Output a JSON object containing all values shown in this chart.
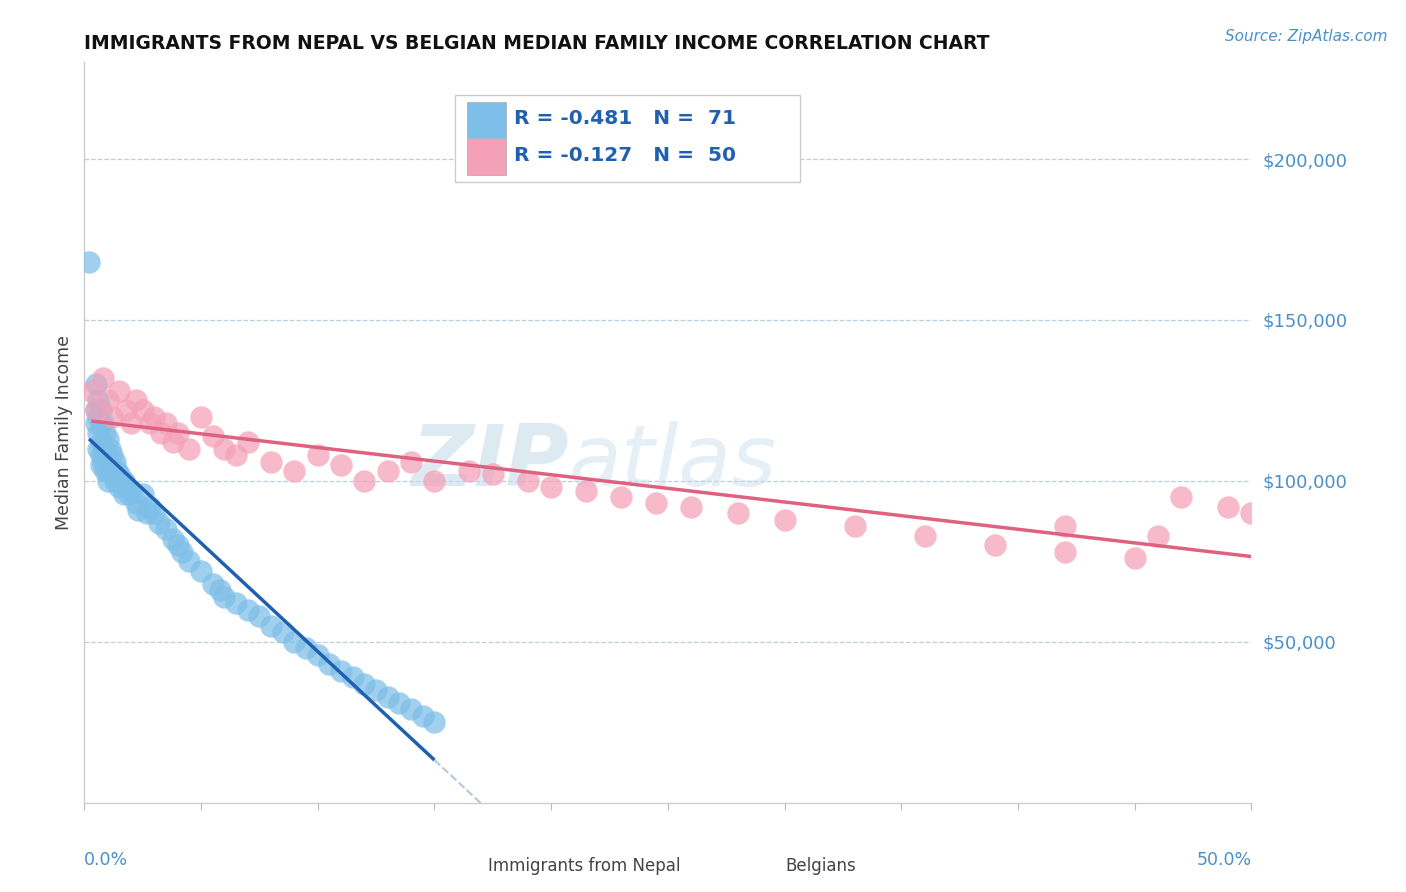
{
  "title": "IMMIGRANTS FROM NEPAL VS BELGIAN MEDIAN FAMILY INCOME CORRELATION CHART",
  "source": "Source: ZipAtlas.com",
  "ylabel": "Median Family Income",
  "yticks": [
    50000,
    100000,
    150000,
    200000
  ],
  "ytick_labels": [
    "$50,000",
    "$100,000",
    "$150,000",
    "$200,000"
  ],
  "xlim": [
    0.0,
    0.5
  ],
  "ylim": [
    0,
    230000
  ],
  "color_blue": "#7dbfe8",
  "color_pink": "#f4a0b8",
  "color_blue_line": "#2060b0",
  "color_pink_line": "#e06080",
  "color_dashed": "#b0c8e0",
  "watermark_left": "ZIP",
  "watermark_right": "atlas",
  "nepal_x": [
    0.002,
    0.005,
    0.005,
    0.005,
    0.006,
    0.006,
    0.006,
    0.006,
    0.007,
    0.007,
    0.007,
    0.007,
    0.007,
    0.008,
    0.008,
    0.008,
    0.009,
    0.009,
    0.009,
    0.01,
    0.01,
    0.01,
    0.01,
    0.011,
    0.011,
    0.012,
    0.012,
    0.013,
    0.013,
    0.014,
    0.015,
    0.015,
    0.016,
    0.017,
    0.017,
    0.018,
    0.019,
    0.02,
    0.022,
    0.023,
    0.025,
    0.027,
    0.028,
    0.03,
    0.032,
    0.035,
    0.038,
    0.04,
    0.042,
    0.045,
    0.05,
    0.055,
    0.058,
    0.06,
    0.065,
    0.07,
    0.075,
    0.08,
    0.085,
    0.09,
    0.095,
    0.1,
    0.105,
    0.11,
    0.115,
    0.12,
    0.125,
    0.13,
    0.135,
    0.14,
    0.145,
    0.15
  ],
  "nepal_y": [
    168000,
    130000,
    122000,
    118000,
    125000,
    120000,
    115000,
    110000,
    122000,
    118000,
    112000,
    108000,
    105000,
    118000,
    110000,
    106000,
    115000,
    108000,
    103000,
    113000,
    108000,
    103000,
    100000,
    110000,
    104000,
    108000,
    102000,
    106000,
    100000,
    103000,
    102000,
    98000,
    100000,
    100000,
    96000,
    98000,
    96000,
    97000,
    93000,
    91000,
    96000,
    90000,
    92000,
    90000,
    87000,
    85000,
    82000,
    80000,
    78000,
    75000,
    72000,
    68000,
    66000,
    64000,
    62000,
    60000,
    58000,
    55000,
    53000,
    50000,
    48000,
    46000,
    43000,
    41000,
    39000,
    37000,
    35000,
    33000,
    31000,
    29000,
    27000,
    25000
  ],
  "belgians_x": [
    0.003,
    0.005,
    0.008,
    0.01,
    0.012,
    0.015,
    0.018,
    0.02,
    0.022,
    0.025,
    0.028,
    0.03,
    0.033,
    0.035,
    0.038,
    0.04,
    0.045,
    0.05,
    0.055,
    0.06,
    0.065,
    0.07,
    0.08,
    0.09,
    0.1,
    0.11,
    0.12,
    0.13,
    0.14,
    0.15,
    0.165,
    0.175,
    0.19,
    0.2,
    0.215,
    0.23,
    0.245,
    0.26,
    0.28,
    0.3,
    0.33,
    0.36,
    0.39,
    0.42,
    0.45,
    0.47,
    0.49,
    0.5,
    0.42,
    0.46
  ],
  "belgians_y": [
    128000,
    122000,
    132000,
    125000,
    120000,
    128000,
    122000,
    118000,
    125000,
    122000,
    118000,
    120000,
    115000,
    118000,
    112000,
    115000,
    110000,
    120000,
    114000,
    110000,
    108000,
    112000,
    106000,
    103000,
    108000,
    105000,
    100000,
    103000,
    106000,
    100000,
    103000,
    102000,
    100000,
    98000,
    97000,
    95000,
    93000,
    92000,
    90000,
    88000,
    86000,
    83000,
    80000,
    78000,
    76000,
    95000,
    92000,
    90000,
    86000,
    83000
  ]
}
